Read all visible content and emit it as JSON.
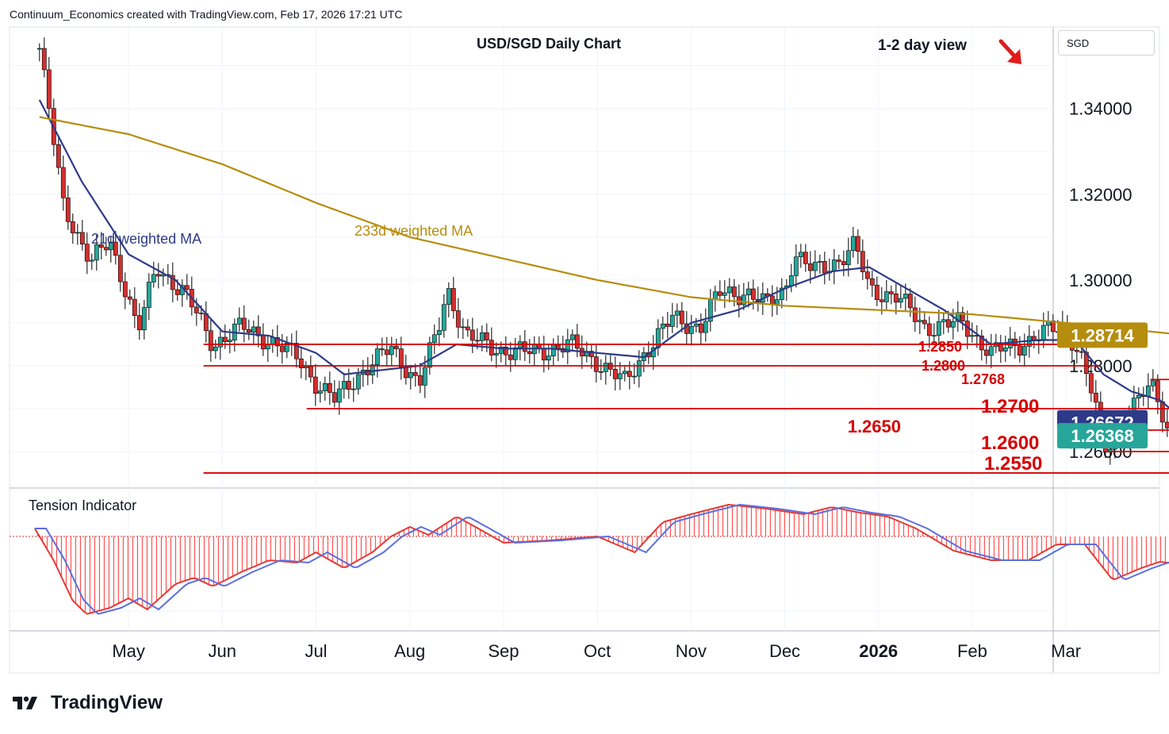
{
  "header": {
    "credit": "Continuum_Economics created with TradingView.com, Feb 17, 2026 17:21 UTC"
  },
  "symbol_box": "SGD",
  "brand": "TradingView",
  "chart_data": {
    "type": "candlestick",
    "title": "USD/SGD Daily Chart",
    "view_label": "1-2 day view",
    "view_direction": "down",
    "currency": "SGD",
    "ylim": [
      1.2515,
      1.359
    ],
    "y_ticks": [
      "1.26000",
      "1.28000",
      "1.30000",
      "1.32000",
      "1.34000"
    ],
    "x_months": [
      {
        "label": "May",
        "bold": false
      },
      {
        "label": "Jun",
        "bold": false
      },
      {
        "label": "Jul",
        "bold": false
      },
      {
        "label": "Aug",
        "bold": false
      },
      {
        "label": "Sep",
        "bold": false
      },
      {
        "label": "Oct",
        "bold": false
      },
      {
        "label": "Nov",
        "bold": false
      },
      {
        "label": "Dec",
        "bold": false
      },
      {
        "label": "2026",
        "bold": true
      },
      {
        "label": "Feb",
        "bold": false
      },
      {
        "label": "Mar",
        "bold": false
      }
    ],
    "price_path": [
      {
        "m": 0.05,
        "c": 1.354
      },
      {
        "m": 0.3,
        "c": 1.318
      },
      {
        "m": 0.6,
        "c": 1.304
      },
      {
        "m": 0.8,
        "c": 1.309
      },
      {
        "m": 1.0,
        "c": 1.296
      },
      {
        "m": 1.1,
        "c": 1.288
      },
      {
        "m": 1.3,
        "c": 1.303
      },
      {
        "m": 1.6,
        "c": 1.297
      },
      {
        "m": 1.9,
        "c": 1.285
      },
      {
        "m": 2.2,
        "c": 1.289
      },
      {
        "m": 2.5,
        "c": 1.286
      },
      {
        "m": 2.8,
        "c": 1.282
      },
      {
        "m": 3.0,
        "c": 1.276
      },
      {
        "m": 3.2,
        "c": 1.272
      },
      {
        "m": 3.5,
        "c": 1.279
      },
      {
        "m": 3.8,
        "c": 1.284
      },
      {
        "m": 4.1,
        "c": 1.276
      },
      {
        "m": 4.3,
        "c": 1.288
      },
      {
        "m": 4.4,
        "c": 1.298
      },
      {
        "m": 4.6,
        "c": 1.287
      },
      {
        "m": 4.9,
        "c": 1.284
      },
      {
        "m": 5.3,
        "c": 1.283
      },
      {
        "m": 5.7,
        "c": 1.285
      },
      {
        "m": 6.0,
        "c": 1.281
      },
      {
        "m": 6.3,
        "c": 1.276
      },
      {
        "m": 6.5,
        "c": 1.283
      },
      {
        "m": 6.8,
        "c": 1.291
      },
      {
        "m": 7.1,
        "c": 1.289
      },
      {
        "m": 7.3,
        "c": 1.297
      },
      {
        "m": 7.6,
        "c": 1.297
      },
      {
        "m": 7.8,
        "c": 1.294
      },
      {
        "m": 8.0,
        "c": 1.298
      },
      {
        "m": 8.1,
        "c": 1.306
      },
      {
        "m": 8.3,
        "c": 1.302
      },
      {
        "m": 8.6,
        "c": 1.305
      },
      {
        "m": 8.75,
        "c": 1.308
      },
      {
        "m": 8.9,
        "c": 1.298
      },
      {
        "m": 9.2,
        "c": 1.296
      },
      {
        "m": 9.5,
        "c": 1.289
      },
      {
        "m": 9.9,
        "c": 1.29
      },
      {
        "m": 10.2,
        "c": 1.283
      },
      {
        "m": 10.5,
        "c": 1.285
      },
      {
        "m": 10.8,
        "c": 1.288
      },
      {
        "m": 11.0,
        "c": 1.289
      },
      {
        "m": 11.15,
        "c": 1.283
      },
      {
        "m": 11.3,
        "c": 1.272
      },
      {
        "m": 11.4,
        "c": 1.26
      },
      {
        "m": 11.6,
        "c": 1.266
      },
      {
        "m": 11.8,
        "c": 1.273
      },
      {
        "m": 11.95,
        "c": 1.275
      },
      {
        "m": 12.1,
        "c": 1.264
      },
      {
        "m": 12.3,
        "c": 1.2637
      }
    ],
    "series": [
      {
        "name": "21d weighted MA",
        "color": "#2e3a87",
        "values": [
          {
            "m": 0.05,
            "v": 1.342
          },
          {
            "m": 0.5,
            "v": 1.323
          },
          {
            "m": 1.0,
            "v": 1.306
          },
          {
            "m": 1.5,
            "v": 1.3
          },
          {
            "m": 2.0,
            "v": 1.288
          },
          {
            "m": 2.5,
            "v": 1.287
          },
          {
            "m": 3.0,
            "v": 1.283
          },
          {
            "m": 3.3,
            "v": 1.278
          },
          {
            "m": 3.7,
            "v": 1.279
          },
          {
            "m": 4.1,
            "v": 1.28
          },
          {
            "m": 4.5,
            "v": 1.285
          },
          {
            "m": 5.0,
            "v": 1.284
          },
          {
            "m": 5.5,
            "v": 1.284
          },
          {
            "m": 6.0,
            "v": 1.283
          },
          {
            "m": 6.5,
            "v": 1.282
          },
          {
            "m": 7.0,
            "v": 1.29
          },
          {
            "m": 7.5,
            "v": 1.293
          },
          {
            "m": 8.0,
            "v": 1.298
          },
          {
            "m": 8.5,
            "v": 1.302
          },
          {
            "m": 8.9,
            "v": 1.303
          },
          {
            "m": 9.3,
            "v": 1.298
          },
          {
            "m": 9.7,
            "v": 1.293
          },
          {
            "m": 10.2,
            "v": 1.285
          },
          {
            "m": 10.7,
            "v": 1.286
          },
          {
            "m": 11.1,
            "v": 1.286
          },
          {
            "m": 11.4,
            "v": 1.278
          },
          {
            "m": 11.7,
            "v": 1.274
          },
          {
            "m": 12.0,
            "v": 1.272
          },
          {
            "m": 12.3,
            "v": 1.2667
          }
        ]
      },
      {
        "name": "233d weighted MA",
        "color": "#b58d0e",
        "values": [
          {
            "m": 0.05,
            "v": 1.338
          },
          {
            "m": 1.0,
            "v": 1.334
          },
          {
            "m": 2.0,
            "v": 1.327
          },
          {
            "m": 3.0,
            "v": 1.318
          },
          {
            "m": 4.0,
            "v": 1.31
          },
          {
            "m": 5.0,
            "v": 1.305
          },
          {
            "m": 6.0,
            "v": 1.3
          },
          {
            "m": 7.0,
            "v": 1.296
          },
          {
            "m": 8.0,
            "v": 1.294
          },
          {
            "m": 9.0,
            "v": 1.293
          },
          {
            "m": 10.0,
            "v": 1.292
          },
          {
            "m": 11.0,
            "v": 1.29
          },
          {
            "m": 12.3,
            "v": 1.2871
          }
        ]
      }
    ],
    "levels": [
      {
        "label": "1.2850",
        "value": 1.285,
        "from_m": 1.8,
        "to_m": 11.35
      },
      {
        "label": "1.2800",
        "value": 1.28,
        "from_m": 1.8,
        "to_m": 11.35
      },
      {
        "label": "1.2768",
        "value": 1.2768,
        "from_m": 11.9,
        "to_m": 12.4
      },
      {
        "label": "1.2700",
        "value": 1.27,
        "from_m": 2.9,
        "to_m": 12.3
      },
      {
        "label": "1.2650",
        "value": 1.265,
        "from_m": 11.45,
        "to_m": 12.3
      },
      {
        "label": "1.2600",
        "value": 1.26,
        "from_m": 11.45,
        "to_m": 12.3
      },
      {
        "label": "1.2550",
        "value": 1.255,
        "from_m": 1.8,
        "to_m": 12.3
      }
    ],
    "price_tags": [
      {
        "label": "1.28714",
        "value": 1.28714,
        "bg": "#b58d0e"
      },
      {
        "label": "1.26672",
        "value": 1.26672,
        "bg": "#2e3a87"
      },
      {
        "label": "1.26368",
        "value": 1.26368,
        "bg": "#26a69a"
      }
    ],
    "indicator": {
      "name": "Tension Indicator",
      "line_color": "#5b6ee1",
      "hist_color": "#ff5252",
      "values": [
        {
          "m": 0.0,
          "v": 0.1
        },
        {
          "m": 0.2,
          "v": -0.3
        },
        {
          "m": 0.4,
          "v": -0.8
        },
        {
          "m": 0.55,
          "v": -0.98
        },
        {
          "m": 0.8,
          "v": -0.9
        },
        {
          "m": 1.0,
          "v": -0.78
        },
        {
          "m": 1.2,
          "v": -0.92
        },
        {
          "m": 1.5,
          "v": -0.6
        },
        {
          "m": 1.7,
          "v": -0.52
        },
        {
          "m": 1.9,
          "v": -0.63
        },
        {
          "m": 2.2,
          "v": -0.45
        },
        {
          "m": 2.5,
          "v": -0.3
        },
        {
          "m": 2.8,
          "v": -0.33
        },
        {
          "m": 3.0,
          "v": -0.2
        },
        {
          "m": 3.3,
          "v": -0.4
        },
        {
          "m": 3.6,
          "v": -0.2
        },
        {
          "m": 3.8,
          "v": 0.0
        },
        {
          "m": 4.0,
          "v": 0.12
        },
        {
          "m": 4.2,
          "v": 0.02
        },
        {
          "m": 4.5,
          "v": 0.25
        },
        {
          "m": 4.7,
          "v": 0.12
        },
        {
          "m": 5.0,
          "v": -0.08
        },
        {
          "m": 5.5,
          "v": -0.05
        },
        {
          "m": 6.0,
          "v": 0.0
        },
        {
          "m": 6.4,
          "v": -0.2
        },
        {
          "m": 6.7,
          "v": 0.18
        },
        {
          "m": 7.0,
          "v": 0.28
        },
        {
          "m": 7.4,
          "v": 0.4
        },
        {
          "m": 7.8,
          "v": 0.35
        },
        {
          "m": 8.2,
          "v": 0.28
        },
        {
          "m": 8.5,
          "v": 0.37
        },
        {
          "m": 8.8,
          "v": 0.3
        },
        {
          "m": 9.1,
          "v": 0.25
        },
        {
          "m": 9.4,
          "v": 0.1
        },
        {
          "m": 9.8,
          "v": -0.18
        },
        {
          "m": 10.2,
          "v": -0.3
        },
        {
          "m": 10.6,
          "v": -0.3
        },
        {
          "m": 10.9,
          "v": -0.1
        },
        {
          "m": 11.2,
          "v": -0.1
        },
        {
          "m": 11.5,
          "v": -0.55
        },
        {
          "m": 11.8,
          "v": -0.4
        },
        {
          "m": 12.0,
          "v": -0.32
        },
        {
          "m": 12.3,
          "v": -0.36
        }
      ]
    }
  }
}
